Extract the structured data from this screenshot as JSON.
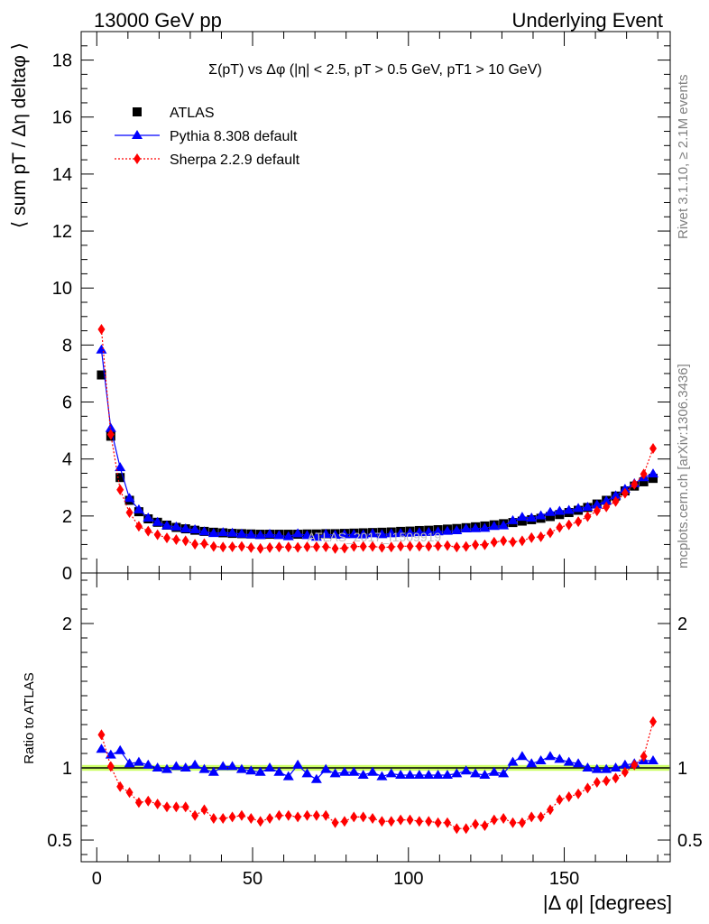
{
  "header": {
    "left": "13000 GeV pp",
    "right": "Underlying Event"
  },
  "side": {
    "rivet": "Rivet 3.1.10, ≥ 2.1M events",
    "mcplots": "mcplots.cern.ch [arXiv:1306.3436]"
  },
  "watermark": "ATLAS_2017_I1509919",
  "chart_data": [
    {
      "type": "scatter",
      "title": "Σ(pT) vs Δφ (|η| < 2.5, pT > 0.5 GeV, pT1 > 10 GeV)",
      "ylabel": "⟨ sum pT / Δη deltaφ ⟩",
      "xlim": [
        -5,
        184
      ],
      "ylim": [
        0,
        19
      ],
      "yticks": [
        0,
        2,
        4,
        6,
        8,
        10,
        12,
        14,
        16,
        18
      ],
      "legend_position": "top-left",
      "series": [
        {
          "name": "ATLAS",
          "color": "#000000",
          "marker": "square",
          "x": [
            1.5,
            4.5,
            7.5,
            10.5,
            13.5,
            16.5,
            19.5,
            22.5,
            25.5,
            28.5,
            31.5,
            34.5,
            37.5,
            40.5,
            43.5,
            46.5,
            49.5,
            52.5,
            55.5,
            58.5,
            61.5,
            64.5,
            67.5,
            70.5,
            73.5,
            76.5,
            79.5,
            82.5,
            85.5,
            88.5,
            91.5,
            94.5,
            97.5,
            100.5,
            103.5,
            106.5,
            109.5,
            112.5,
            115.5,
            118.5,
            121.5,
            124.5,
            127.5,
            130.5,
            133.5,
            136.5,
            139.5,
            142.5,
            145.5,
            148.5,
            151.5,
            154.5,
            157.5,
            160.5,
            163.5,
            166.5,
            169.5,
            172.5,
            175.5,
            178.5
          ],
          "values": [
            6.95,
            4.8,
            3.35,
            2.55,
            2.15,
            1.9,
            1.78,
            1.68,
            1.6,
            1.55,
            1.5,
            1.46,
            1.43,
            1.41,
            1.39,
            1.38,
            1.37,
            1.36,
            1.36,
            1.36,
            1.36,
            1.36,
            1.37,
            1.37,
            1.38,
            1.38,
            1.39,
            1.4,
            1.41,
            1.42,
            1.43,
            1.44,
            1.46,
            1.47,
            1.49,
            1.5,
            1.52,
            1.54,
            1.56,
            1.59,
            1.62,
            1.65,
            1.69,
            1.73,
            1.77,
            1.82,
            1.87,
            1.92,
            1.98,
            2.05,
            2.12,
            2.2,
            2.3,
            2.42,
            2.55,
            2.7,
            2.88,
            3.05,
            3.2,
            3.32
          ]
        },
        {
          "name": "Pythia 8.308 default",
          "color": "#0000ff",
          "marker": "triangle",
          "x": [
            1.5,
            4.5,
            7.5,
            10.5,
            13.5,
            16.5,
            19.5,
            22.5,
            25.5,
            28.5,
            31.5,
            34.5,
            37.5,
            40.5,
            43.5,
            46.5,
            49.5,
            52.5,
            55.5,
            58.5,
            61.5,
            64.5,
            67.5,
            70.5,
            73.5,
            76.5,
            79.5,
            82.5,
            85.5,
            88.5,
            91.5,
            94.5,
            97.5,
            100.5,
            103.5,
            106.5,
            109.5,
            112.5,
            115.5,
            118.5,
            121.5,
            124.5,
            127.5,
            130.5,
            133.5,
            136.5,
            139.5,
            142.5,
            145.5,
            148.5,
            151.5,
            154.5,
            157.5,
            160.5,
            163.5,
            166.5,
            169.5,
            172.5,
            175.5,
            178.5
          ],
          "values": [
            7.83,
            5.08,
            3.7,
            2.62,
            2.22,
            1.93,
            1.78,
            1.66,
            1.62,
            1.55,
            1.52,
            1.45,
            1.39,
            1.42,
            1.4,
            1.37,
            1.34,
            1.32,
            1.36,
            1.32,
            1.28,
            1.38,
            1.32,
            1.26,
            1.36,
            1.33,
            1.35,
            1.35,
            1.34,
            1.38,
            1.35,
            1.38,
            1.39,
            1.4,
            1.42,
            1.43,
            1.45,
            1.47,
            1.49,
            1.55,
            1.56,
            1.57,
            1.64,
            1.66,
            1.84,
            1.96,
            1.93,
            2.01,
            2.13,
            2.17,
            2.2,
            2.27,
            2.31,
            2.39,
            2.53,
            2.71,
            2.94,
            3.14,
            3.35,
            3.48
          ]
        },
        {
          "name": "Sherpa 2.2.9 default",
          "color": "#ff0000",
          "marker": "diamond",
          "x": [
            1.5,
            4.5,
            7.5,
            10.5,
            13.5,
            16.5,
            19.5,
            22.5,
            25.5,
            28.5,
            31.5,
            34.5,
            37.5,
            40.5,
            43.5,
            46.5,
            49.5,
            52.5,
            55.5,
            58.5,
            61.5,
            64.5,
            67.5,
            70.5,
            73.5,
            76.5,
            79.5,
            82.5,
            85.5,
            88.5,
            91.5,
            94.5,
            97.5,
            100.5,
            103.5,
            106.5,
            109.5,
            112.5,
            115.5,
            118.5,
            121.5,
            124.5,
            127.5,
            130.5,
            133.5,
            136.5,
            139.5,
            142.5,
            145.5,
            148.5,
            151.5,
            154.5,
            157.5,
            160.5,
            163.5,
            166.5,
            169.5,
            172.5,
            175.5,
            178.5
          ],
          "values": [
            8.55,
            4.86,
            2.92,
            2.12,
            1.64,
            1.47,
            1.34,
            1.23,
            1.17,
            1.13,
            1.01,
            1.03,
            0.93,
            0.91,
            0.92,
            0.93,
            0.89,
            0.86,
            0.89,
            0.91,
            0.91,
            0.9,
            0.92,
            0.92,
            0.92,
            0.86,
            0.87,
            0.93,
            0.93,
            0.93,
            0.9,
            0.91,
            0.94,
            0.94,
            0.94,
            0.94,
            0.95,
            0.96,
            0.91,
            0.93,
            0.99,
            0.99,
            1.08,
            1.13,
            1.09,
            1.13,
            1.24,
            1.27,
            1.41,
            1.6,
            1.69,
            1.8,
            1.98,
            2.18,
            2.32,
            2.51,
            2.8,
            3.11,
            3.47,
            4.37
          ]
        }
      ]
    },
    {
      "type": "scatter",
      "ylabel": "Ratio to ATLAS",
      "xlabel": "|Δ φ| [degrees]",
      "xlim": [
        -5,
        184
      ],
      "ylim": [
        0.35,
        2.35
      ],
      "xticks": [
        0,
        50,
        100,
        150
      ],
      "yticks": [
        0.5,
        1,
        2
      ],
      "band": {
        "low": 0.98,
        "high": 1.02,
        "color": "#ccff66"
      },
      "series": [
        {
          "name": "Pythia 8.308 default",
          "color": "#0000ff",
          "marker": "triangle",
          "x": [
            1.5,
            4.5,
            7.5,
            10.5,
            13.5,
            16.5,
            19.5,
            22.5,
            25.5,
            28.5,
            31.5,
            34.5,
            37.5,
            40.5,
            43.5,
            46.5,
            49.5,
            52.5,
            55.5,
            58.5,
            61.5,
            64.5,
            67.5,
            70.5,
            73.5,
            76.5,
            79.5,
            82.5,
            85.5,
            88.5,
            91.5,
            94.5,
            97.5,
            100.5,
            103.5,
            106.5,
            109.5,
            112.5,
            115.5,
            118.5,
            121.5,
            124.5,
            127.5,
            130.5,
            133.5,
            136.5,
            139.5,
            142.5,
            145.5,
            148.5,
            151.5,
            154.5,
            157.5,
            160.5,
            163.5,
            166.5,
            169.5,
            172.5,
            175.5,
            178.5
          ],
          "values": [
            1.13,
            1.09,
            1.12,
            1.03,
            1.04,
            1.02,
            1.0,
            0.99,
            1.01,
            1.0,
            1.02,
            0.99,
            0.97,
            1.01,
            1.01,
            0.99,
            0.98,
            0.97,
            1.0,
            0.97,
            0.94,
            1.02,
            0.96,
            0.92,
            0.99,
            0.96,
            0.97,
            0.97,
            0.95,
            0.97,
            0.94,
            0.96,
            0.95,
            0.95,
            0.95,
            0.95,
            0.95,
            0.95,
            0.96,
            0.98,
            0.96,
            0.95,
            0.97,
            0.96,
            1.04,
            1.08,
            1.03,
            1.05,
            1.08,
            1.06,
            1.04,
            1.03,
            1.0,
            0.99,
            0.99,
            1.0,
            1.02,
            1.03,
            1.05,
            1.05
          ]
        },
        {
          "name": "Sherpa 2.2.9 default",
          "color": "#ff0000",
          "marker": "diamond",
          "x": [
            1.5,
            4.5,
            7.5,
            10.5,
            13.5,
            16.5,
            19.5,
            22.5,
            25.5,
            28.5,
            31.5,
            34.5,
            37.5,
            40.5,
            43.5,
            46.5,
            49.5,
            52.5,
            55.5,
            58.5,
            61.5,
            64.5,
            67.5,
            70.5,
            73.5,
            76.5,
            79.5,
            82.5,
            85.5,
            88.5,
            91.5,
            94.5,
            97.5,
            100.5,
            103.5,
            106.5,
            109.5,
            112.5,
            115.5,
            118.5,
            121.5,
            124.5,
            127.5,
            130.5,
            133.5,
            136.5,
            139.5,
            142.5,
            145.5,
            148.5,
            151.5,
            154.5,
            157.5,
            160.5,
            163.5,
            166.5,
            169.5,
            172.5,
            175.5,
            178.5
          ],
          "values": [
            1.23,
            1.01,
            0.87,
            0.83,
            0.76,
            0.77,
            0.75,
            0.73,
            0.73,
            0.73,
            0.67,
            0.71,
            0.65,
            0.65,
            0.66,
            0.67,
            0.65,
            0.63,
            0.65,
            0.67,
            0.67,
            0.66,
            0.67,
            0.67,
            0.67,
            0.62,
            0.63,
            0.66,
            0.66,
            0.65,
            0.63,
            0.63,
            0.64,
            0.64,
            0.63,
            0.63,
            0.62,
            0.62,
            0.58,
            0.58,
            0.61,
            0.6,
            0.64,
            0.65,
            0.62,
            0.62,
            0.66,
            0.66,
            0.71,
            0.78,
            0.8,
            0.82,
            0.86,
            0.9,
            0.91,
            0.93,
            0.97,
            1.02,
            1.08,
            1.32
          ]
        }
      ]
    }
  ]
}
